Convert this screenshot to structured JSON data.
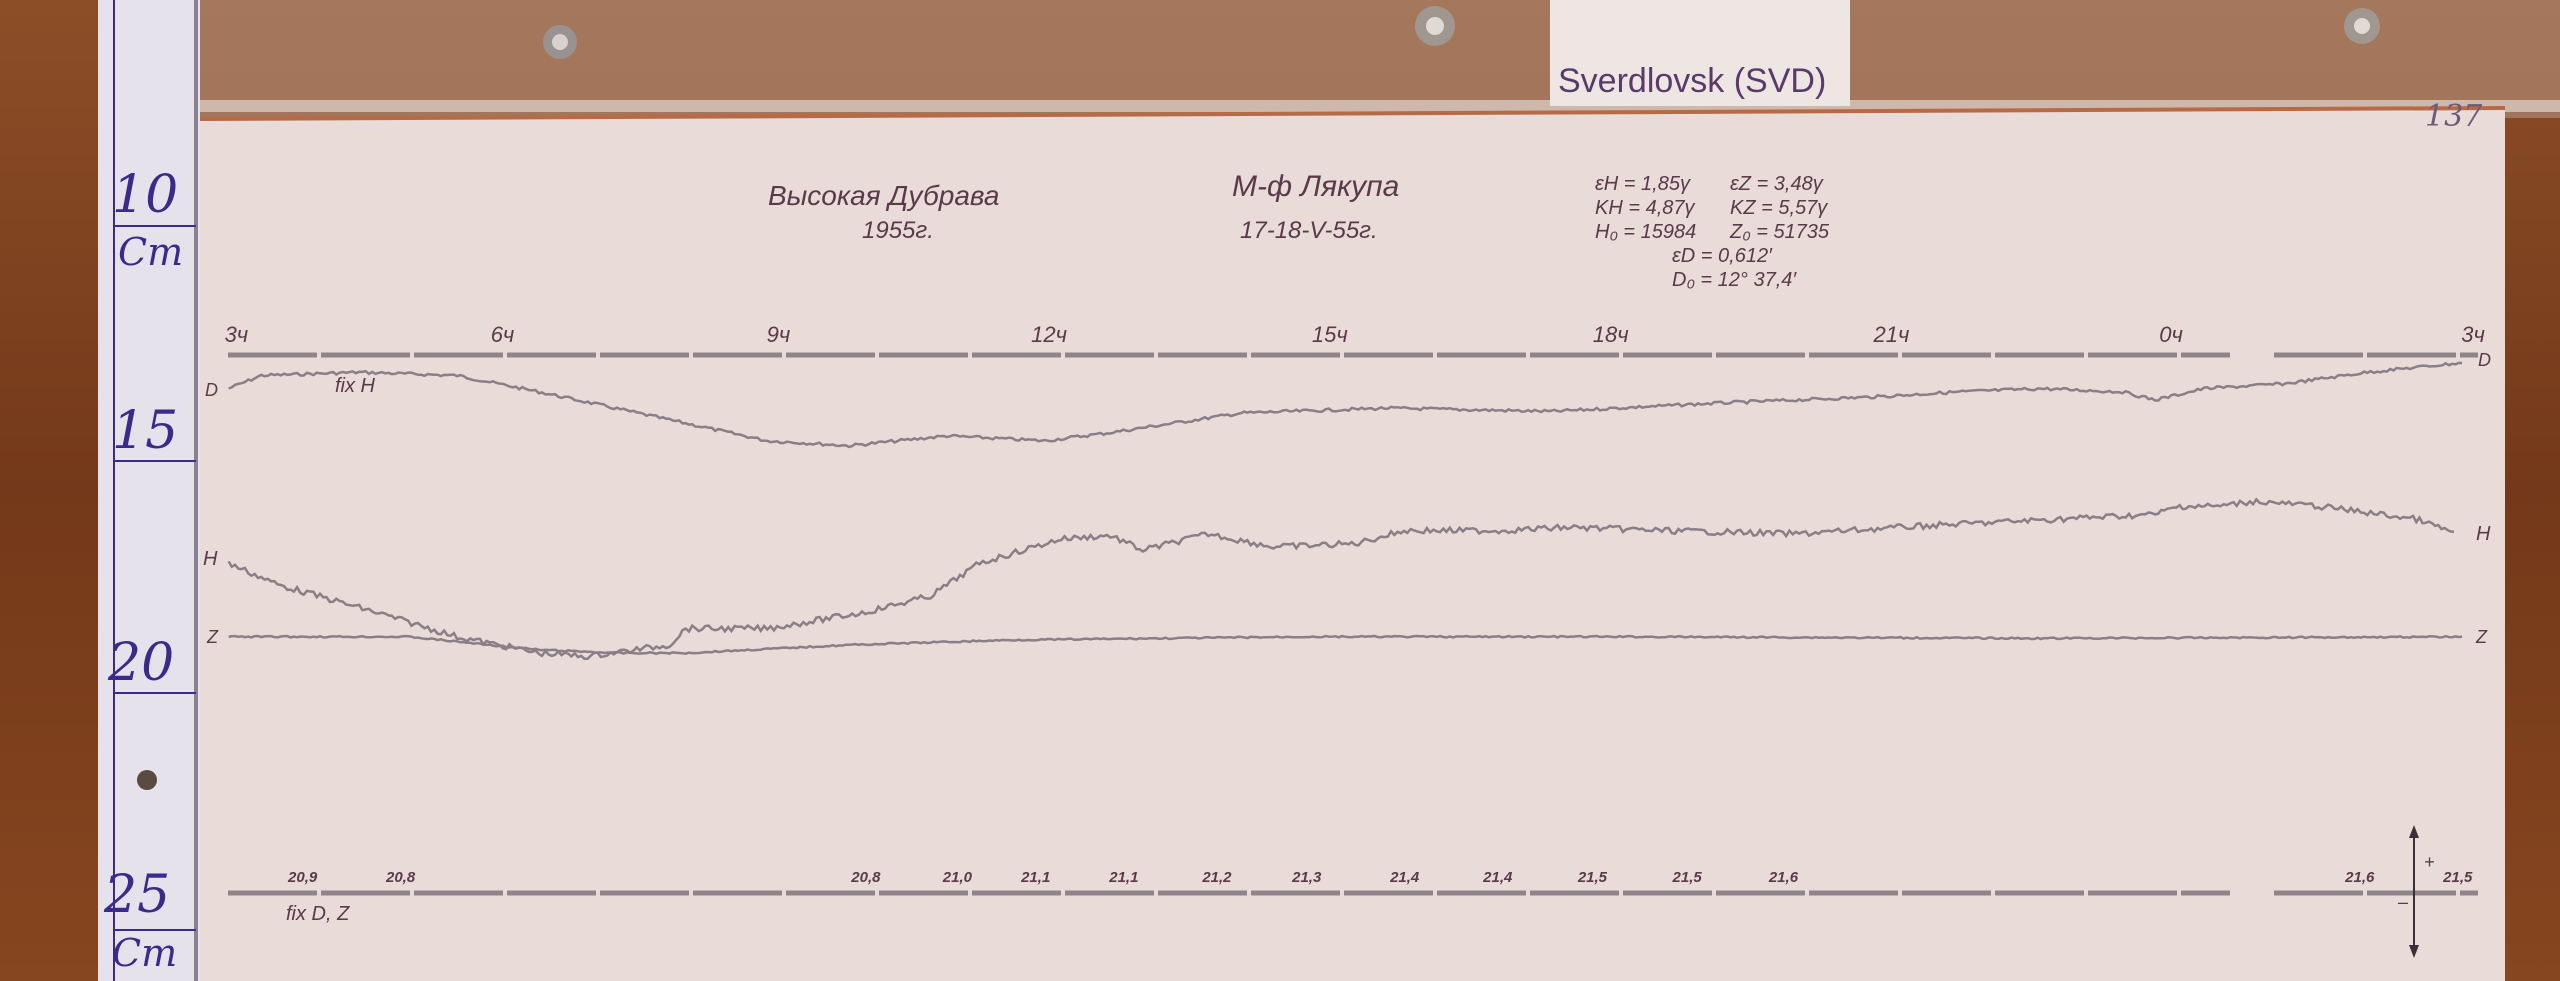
{
  "station_label": "Sverdlovsk (SVD)",
  "page_number": "137",
  "ruler": {
    "marks": [
      "10",
      "15",
      "20",
      "25"
    ],
    "unit": "Cm"
  },
  "header": {
    "station": "Высокая Дубрава",
    "year": "1955г.",
    "observer": "М-ф Лякупа",
    "date": "17-18-V-55г."
  },
  "parameters": [
    "εH = 1,85γ",
    "εZ = 3,48γ",
    "KH = 4,87γ",
    "KZ = 5,57γ",
    "H₀ = 15984",
    "Z₀ = 51735",
    "εD = 0,612′",
    "D₀ = 12° 37,4′"
  ],
  "hour_labels": [
    "3ч",
    "6ч",
    "9ч",
    "12ч",
    "15ч",
    "18ч",
    "21ч",
    "0ч",
    "3ч"
  ],
  "baseline_labels": {
    "top": "fix H",
    "bottom": "fix D, Z"
  },
  "trace_labels": {
    "d": "D",
    "h": "H",
    "z": "Z"
  },
  "temperature_labels": [
    "20,9",
    "20,8",
    "20,8",
    "21,0",
    "21,1",
    "21,1",
    "21,2",
    "21,3",
    "21,4",
    "21,4",
    "21,5",
    "21,5",
    "21,6",
    "21,6",
    "21,5"
  ],
  "polarity": {
    "plus": "+",
    "minus": "–"
  },
  "colors": {
    "wood": "#7a3f1f",
    "paper": "#e8dbd8",
    "trace": "#8a7f86",
    "ruler_ink": "#3b2a8a"
  }
}
